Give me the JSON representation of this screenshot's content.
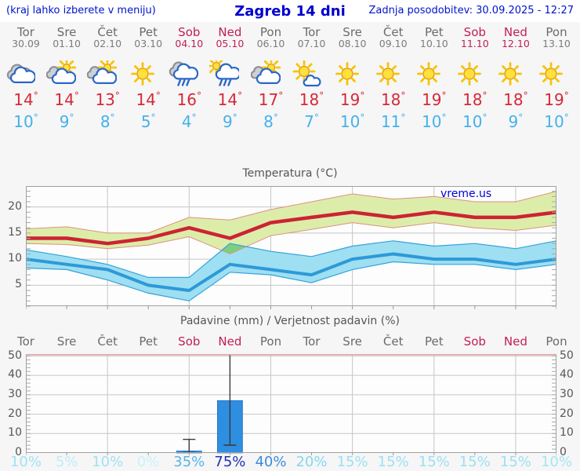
{
  "header": {
    "hint": "(kraj lahko izberete v meniju)",
    "title": "Zagreb 14 dni",
    "updated": "Zadnja posodobitev: 30.09.2025 - 12:27"
  },
  "watermark": "vreme.us",
  "colors": {
    "header_blue": "#0013cc",
    "weekday_gray": "#6b6b6b",
    "weekend_red": "#c11e56",
    "tmax_red": "#d62839",
    "tmin_blue": "#45b1ea",
    "max_band_fill": "#dcedaa",
    "max_band_edge": "#e0907f",
    "min_band_fill": "#9edff2",
    "min_band_edge": "#35a2dc",
    "band_overlap": "#7ccf7f",
    "bar_blue": "#2e8ee0",
    "grid_gray": "#c6c6c6"
  },
  "forecast": {
    "days": [
      {
        "name": "Tor",
        "date": "30.09",
        "weekend": false,
        "icon": "cloudy",
        "tmax": 14,
        "tmin": 10
      },
      {
        "name": "Sre",
        "date": "01.10",
        "weekend": false,
        "icon": "partly-cloudy",
        "tmax": 14,
        "tmin": 9
      },
      {
        "name": "Čet",
        "date": "02.10",
        "weekend": false,
        "icon": "partly-cloudy",
        "tmax": 13,
        "tmin": 8
      },
      {
        "name": "Pet",
        "date": "03.10",
        "weekend": false,
        "icon": "sunny",
        "tmax": 14,
        "tmin": 5
      },
      {
        "name": "Sob",
        "date": "04.10",
        "weekend": true,
        "icon": "rain",
        "tmax": 16,
        "tmin": 4
      },
      {
        "name": "Ned",
        "date": "05.10",
        "weekend": true,
        "icon": "sun-rain",
        "tmax": 14,
        "tmin": 9
      },
      {
        "name": "Pon",
        "date": "06.10",
        "weekend": false,
        "icon": "partly-cloudy",
        "tmax": 17,
        "tmin": 8
      },
      {
        "name": "Tor",
        "date": "07.10",
        "weekend": false,
        "icon": "sun-small-cloud",
        "tmax": 18,
        "tmin": 7
      },
      {
        "name": "Sre",
        "date": "08.10",
        "weekend": false,
        "icon": "sunny",
        "tmax": 19,
        "tmin": 10
      },
      {
        "name": "Čet",
        "date": "09.10",
        "weekend": false,
        "icon": "sunny",
        "tmax": 18,
        "tmin": 11
      },
      {
        "name": "Pet",
        "date": "10.10",
        "weekend": false,
        "icon": "sunny",
        "tmax": 19,
        "tmin": 10
      },
      {
        "name": "Sob",
        "date": "11.10",
        "weekend": true,
        "icon": "sunny",
        "tmax": 18,
        "tmin": 10
      },
      {
        "name": "Ned",
        "date": "12.10",
        "weekend": true,
        "icon": "sunny",
        "tmax": 18,
        "tmin": 9
      },
      {
        "name": "Pon",
        "date": "13.10",
        "weekend": false,
        "icon": "sunny",
        "tmax": 19,
        "tmin": 10
      }
    ]
  },
  "chart_data": [
    {
      "type": "line",
      "title": "Temperatura (°C)",
      "categories": [
        "Tor",
        "Sre",
        "Čet",
        "Pet",
        "Sob",
        "Ned",
        "Pon",
        "Tor",
        "Sre",
        "Čet",
        "Pet",
        "Sob",
        "Ned",
        "Pon"
      ],
      "series": [
        {
          "name": "tmax",
          "color": "#cc2334",
          "values": [
            14,
            14,
            13,
            14,
            16,
            14,
            17,
            18,
            19,
            18,
            19,
            18,
            18,
            19
          ]
        },
        {
          "name": "tmax_range_upper",
          "values": [
            15.8,
            16.2,
            15,
            15,
            18,
            17.5,
            19.5,
            21,
            22.5,
            21.5,
            22,
            21,
            21,
            23
          ]
        },
        {
          "name": "tmax_range_lower",
          "values": [
            13,
            12.8,
            12,
            12.7,
            14.3,
            11,
            14.5,
            15.7,
            17,
            16,
            17,
            16,
            15.5,
            16.5
          ]
        },
        {
          "name": "tmin",
          "color": "#2e99d8",
          "values": [
            10,
            9,
            8,
            5,
            4,
            9,
            8,
            7,
            10,
            11,
            10,
            10,
            9,
            10
          ]
        },
        {
          "name": "tmin_range_upper",
          "values": [
            11.8,
            10.5,
            9,
            6.5,
            6.5,
            13,
            11.5,
            10.5,
            12.5,
            13.5,
            12.5,
            13,
            12,
            13.5
          ]
        },
        {
          "name": "tmin_range_lower",
          "values": [
            8.3,
            8,
            6,
            3.5,
            2,
            7.5,
            7,
            5.5,
            8,
            9.5,
            9,
            9,
            8,
            9
          ]
        }
      ],
      "ylim": [
        1,
        24
      ],
      "yticks": [
        5,
        10,
        15,
        20
      ],
      "grid": true,
      "legend": "none",
      "watermark": "vreme.us"
    },
    {
      "type": "bar",
      "title": "Padavine (mm) / Verjetnost padavin (%)",
      "categories": [
        "Tor",
        "Sre",
        "Čet",
        "Pet",
        "Sob",
        "Ned",
        "Pon",
        "Tor",
        "Sre",
        "Čet",
        "Pet",
        "Sob",
        "Ned",
        "Pon"
      ],
      "values": [
        0,
        0,
        0,
        0,
        1,
        27,
        0,
        0,
        0,
        0,
        0,
        0,
        0,
        0
      ],
      "whiskers": [
        null,
        null,
        null,
        null,
        [
          0,
          7
        ],
        [
          4,
          52
        ],
        null,
        null,
        null,
        null,
        null,
        null,
        null,
        null
      ],
      "probabilities": [
        "10%",
        "5%",
        "10%",
        "0%",
        "35%",
        "75%",
        "40%",
        "20%",
        "15%",
        "15%",
        "15%",
        "15%",
        "15%",
        "10%"
      ],
      "probability_colors": [
        "#9fe2f5",
        "#bdeef9",
        "#9fe2f5",
        "#c9f2fb",
        "#55b4e9",
        "#2230b5",
        "#3f8ada",
        "#84d7f1",
        "#9be0f4",
        "#9be0f4",
        "#9be0f4",
        "#9be0f4",
        "#9be0f4",
        "#a5e5f6"
      ],
      "ylim": [
        0,
        51
      ],
      "yticks": [
        0,
        10,
        20,
        30,
        40,
        50
      ],
      "grid": true,
      "ylabel_sides": "both"
    }
  ]
}
